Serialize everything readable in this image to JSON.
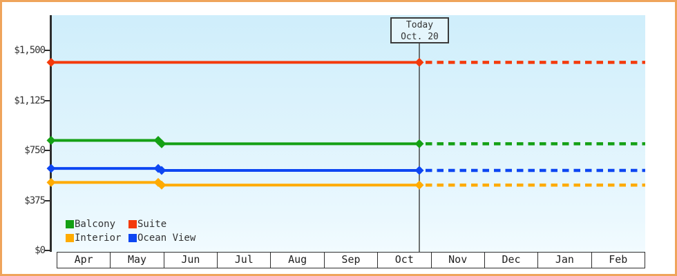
{
  "frame": {
    "border_color": "#efa45b",
    "background": "#ffffff"
  },
  "chart_data": {
    "type": "line",
    "x_axis": {
      "months": [
        "Apr",
        "May",
        "Jun",
        "Jul",
        "Aug",
        "Sep",
        "Oct",
        "Nov",
        "Dec",
        "Jan",
        "Feb"
      ]
    },
    "y_axis": {
      "min": 0,
      "max": 1500,
      "ticks": [
        {
          "label": "$0",
          "value": 0
        },
        {
          "label": "$375",
          "value": 375
        },
        {
          "label": "$750",
          "value": 750
        },
        {
          "label": "$1,125",
          "value": 1125
        },
        {
          "label": "$1,500",
          "value": 1500
        }
      ]
    },
    "today": {
      "label_line1": "Today",
      "label_line2": "Oct. 20",
      "month": "Oct",
      "day": 20
    },
    "projection_style": "dashed_after_today",
    "series": [
      {
        "name": "Suite",
        "color": "#f43a0b",
        "start_value": 1410,
        "late_may_value": 1410,
        "today_value": 1410,
        "projected_value": 1410,
        "may_price_change": false
      },
      {
        "name": "Balcony",
        "color": "#14a014",
        "start_value": 825,
        "late_may_value": 800,
        "today_value": 800,
        "projected_value": 800,
        "may_price_change": true
      },
      {
        "name": "Ocean View",
        "color": "#0d46f2",
        "start_value": 615,
        "late_may_value": 600,
        "today_value": 600,
        "projected_value": 600,
        "may_price_change": true
      },
      {
        "name": "Interior",
        "color": "#ffab00",
        "start_value": 510,
        "late_may_value": 490,
        "today_value": 490,
        "projected_value": 490,
        "may_price_change": true
      }
    ],
    "legend": [
      {
        "label": "Balcony",
        "color": "#14a014"
      },
      {
        "label": "Suite",
        "color": "#f43a0b"
      },
      {
        "label": "Interior",
        "color": "#ffab00"
      },
      {
        "label": "Ocean View",
        "color": "#0d46f2"
      }
    ]
  }
}
